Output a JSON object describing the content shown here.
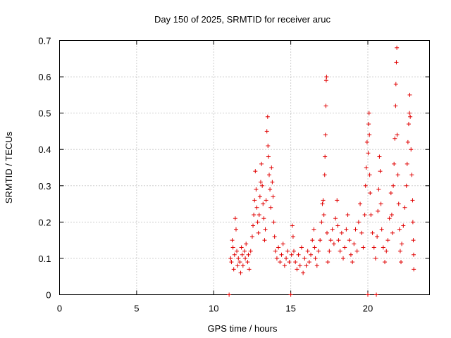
{
  "chart_data": {
    "type": "scatter",
    "title": "Day 150 of 2025, SRMTID for receiver aruc",
    "xlabel": "GPS time / hours",
    "ylabel": "SRMTID / TECUs",
    "xlim": [
      0,
      24
    ],
    "ylim": [
      0,
      0.7
    ],
    "xticks": [
      0,
      5,
      10,
      15,
      20
    ],
    "yticks": [
      0,
      0.1,
      0.2,
      0.3,
      0.4,
      0.5,
      0.6,
      0.7
    ],
    "grid": true,
    "marker": "plus",
    "marker_color": "#e00000",
    "series": [
      {
        "name": "SRMTID",
        "points": [
          [
            11.0,
            0.0
          ],
          [
            11.1,
            0.1
          ],
          [
            11.15,
            0.09
          ],
          [
            11.2,
            0.15
          ],
          [
            11.25,
            0.13
          ],
          [
            11.3,
            0.07
          ],
          [
            11.35,
            0.11
          ],
          [
            11.4,
            0.21
          ],
          [
            11.45,
            0.18
          ],
          [
            11.5,
            0.12
          ],
          [
            11.55,
            0.08
          ],
          [
            11.6,
            0.1
          ],
          [
            11.7,
            0.09
          ],
          [
            11.75,
            0.06
          ],
          [
            11.8,
            0.13
          ],
          [
            11.85,
            0.11
          ],
          [
            11.9,
            0.08
          ],
          [
            12.0,
            0.12
          ],
          [
            12.05,
            0.1
          ],
          [
            12.1,
            0.14
          ],
          [
            12.2,
            0.09
          ],
          [
            12.25,
            0.11
          ],
          [
            12.3,
            0.07
          ],
          [
            12.4,
            0.12
          ],
          [
            12.5,
            0.16
          ],
          [
            12.55,
            0.19
          ],
          [
            12.6,
            0.22
          ],
          [
            12.65,
            0.26
          ],
          [
            12.7,
            0.34
          ],
          [
            12.75,
            0.29
          ],
          [
            12.8,
            0.24
          ],
          [
            12.85,
            0.2
          ],
          [
            12.9,
            0.17
          ],
          [
            12.95,
            0.22
          ],
          [
            13.0,
            0.27
          ],
          [
            13.05,
            0.31
          ],
          [
            13.1,
            0.36
          ],
          [
            13.15,
            0.3
          ],
          [
            13.2,
            0.25
          ],
          [
            13.25,
            0.21
          ],
          [
            13.3,
            0.15
          ],
          [
            13.35,
            0.18
          ],
          [
            13.4,
            0.26
          ],
          [
            13.45,
            0.45
          ],
          [
            13.5,
            0.49
          ],
          [
            13.52,
            0.41
          ],
          [
            13.55,
            0.38
          ],
          [
            13.6,
            0.33
          ],
          [
            13.65,
            0.29
          ],
          [
            13.7,
            0.24
          ],
          [
            13.75,
            0.35
          ],
          [
            13.8,
            0.31
          ],
          [
            13.85,
            0.27
          ],
          [
            13.9,
            0.2
          ],
          [
            13.95,
            0.16
          ],
          [
            14.0,
            0.12
          ],
          [
            14.1,
            0.1
          ],
          [
            14.2,
            0.13
          ],
          [
            14.3,
            0.09
          ],
          [
            14.4,
            0.11
          ],
          [
            14.5,
            0.14
          ],
          [
            14.6,
            0.08
          ],
          [
            14.7,
            0.1
          ],
          [
            14.8,
            0.12
          ],
          [
            14.9,
            0.09
          ],
          [
            15.0,
            0.0
          ],
          [
            15.05,
            0.11
          ],
          [
            15.1,
            0.19
          ],
          [
            15.15,
            0.16
          ],
          [
            15.2,
            0.12
          ],
          [
            15.3,
            0.09
          ],
          [
            15.4,
            0.07
          ],
          [
            15.5,
            0.11
          ],
          [
            15.6,
            0.08
          ],
          [
            15.7,
            0.13
          ],
          [
            15.8,
            0.06
          ],
          [
            15.9,
            0.1
          ],
          [
            16.0,
            0.08
          ],
          [
            16.1,
            0.12
          ],
          [
            16.2,
            0.09
          ],
          [
            16.3,
            0.11
          ],
          [
            16.4,
            0.15
          ],
          [
            16.5,
            0.18
          ],
          [
            16.55,
            0.13
          ],
          [
            16.6,
            0.1
          ],
          [
            16.7,
            0.08
          ],
          [
            16.8,
            0.12
          ],
          [
            16.9,
            0.15
          ],
          [
            17.0,
            0.2
          ],
          [
            17.05,
            0.25
          ],
          [
            17.1,
            0.26
          ],
          [
            17.15,
            0.22
          ],
          [
            17.2,
            0.33
          ],
          [
            17.22,
            0.38
          ],
          [
            17.25,
            0.44
          ],
          [
            17.28,
            0.52
          ],
          [
            17.3,
            0.59
          ],
          [
            17.32,
            0.6
          ],
          [
            17.35,
            0.17
          ],
          [
            17.4,
            0.09
          ],
          [
            17.5,
            0.12
          ],
          [
            17.6,
            0.15
          ],
          [
            17.7,
            0.18
          ],
          [
            17.8,
            0.14
          ],
          [
            17.9,
            0.21
          ],
          [
            18.0,
            0.26
          ],
          [
            18.05,
            0.19
          ],
          [
            18.1,
            0.15
          ],
          [
            18.2,
            0.12
          ],
          [
            18.3,
            0.17
          ],
          [
            18.4,
            0.1
          ],
          [
            18.5,
            0.13
          ],
          [
            18.6,
            0.18
          ],
          [
            18.7,
            0.22
          ],
          [
            18.8,
            0.15
          ],
          [
            18.9,
            0.11
          ],
          [
            19.0,
            0.09
          ],
          [
            19.1,
            0.14
          ],
          [
            19.2,
            0.18
          ],
          [
            19.3,
            0.12
          ],
          [
            19.4,
            0.2
          ],
          [
            19.5,
            0.25
          ],
          [
            19.6,
            0.17
          ],
          [
            19.7,
            0.13
          ],
          [
            19.8,
            0.22
          ],
          [
            19.85,
            0.3
          ],
          [
            19.9,
            0.35
          ],
          [
            19.95,
            0.42
          ],
          [
            20.0,
            0.0
          ],
          [
            20.02,
            0.39
          ],
          [
            20.05,
            0.47
          ],
          [
            20.08,
            0.5
          ],
          [
            20.1,
            0.44
          ],
          [
            20.12,
            0.33
          ],
          [
            20.15,
            0.28
          ],
          [
            20.2,
            0.22
          ],
          [
            20.3,
            0.17
          ],
          [
            20.4,
            0.13
          ],
          [
            20.5,
            0.1
          ],
          [
            20.55,
            0.0
          ],
          [
            20.6,
            0.16
          ],
          [
            20.65,
            0.23
          ],
          [
            20.7,
            0.29
          ],
          [
            20.75,
            0.38
          ],
          [
            20.8,
            0.34
          ],
          [
            20.85,
            0.25
          ],
          [
            20.9,
            0.18
          ],
          [
            21.0,
            0.13
          ],
          [
            21.1,
            0.09
          ],
          [
            21.2,
            0.12
          ],
          [
            21.3,
            0.15
          ],
          [
            21.4,
            0.21
          ],
          [
            21.5,
            0.28
          ],
          [
            21.55,
            0.22
          ],
          [
            21.6,
            0.17
          ],
          [
            21.65,
            0.3
          ],
          [
            21.7,
            0.36
          ],
          [
            21.75,
            0.43
          ],
          [
            21.8,
            0.52
          ],
          [
            21.82,
            0.58
          ],
          [
            21.85,
            0.64
          ],
          [
            21.88,
            0.68
          ],
          [
            21.9,
            0.44
          ],
          [
            21.95,
            0.33
          ],
          [
            22.0,
            0.25
          ],
          [
            22.05,
            0.18
          ],
          [
            22.1,
            0.12
          ],
          [
            22.15,
            0.09
          ],
          [
            22.2,
            0.14
          ],
          [
            22.3,
            0.19
          ],
          [
            22.4,
            0.24
          ],
          [
            22.5,
            0.3
          ],
          [
            22.55,
            0.36
          ],
          [
            22.6,
            0.42
          ],
          [
            22.65,
            0.47
          ],
          [
            22.7,
            0.5
          ],
          [
            22.72,
            0.55
          ],
          [
            22.75,
            0.49
          ],
          [
            22.8,
            0.4
          ],
          [
            22.85,
            0.33
          ],
          [
            22.9,
            0.26
          ],
          [
            22.92,
            0.2
          ],
          [
            22.95,
            0.15
          ],
          [
            22.97,
            0.11
          ],
          [
            22.98,
            0.07
          ]
        ]
      }
    ]
  }
}
